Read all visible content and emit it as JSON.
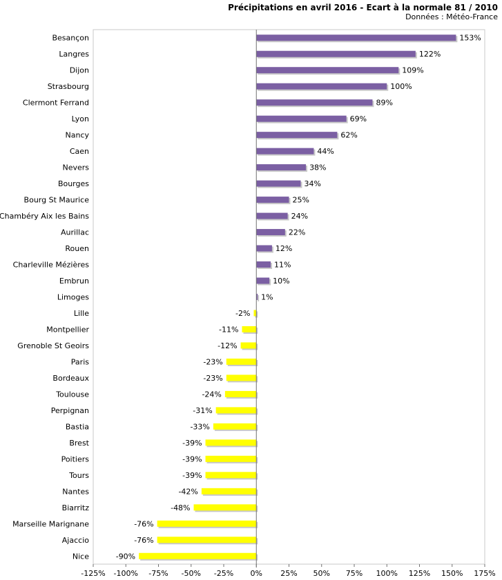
{
  "chart_data": {
    "type": "bar",
    "orientation": "horizontal",
    "title": "Précipitations en avril 2016 - Ecart à la normale 81 / 2010",
    "subtitle": "Données : Météo-France",
    "categories": [
      "Besançon",
      "Langres",
      "Dijon",
      "Strasbourg",
      "Clermont Ferrand",
      "Lyon",
      "Nancy",
      "Caen",
      "Nevers",
      "Bourges",
      "Bourg St Maurice",
      "Chambéry Aix les Bains",
      "Aurillac",
      "Rouen",
      "Charleville Mézières",
      "Embrun",
      "Limoges",
      "Lille",
      "Montpellier",
      "Grenoble St Geoirs",
      "Paris",
      "Bordeaux",
      "Toulouse",
      "Perpignan",
      "Bastia",
      "Brest",
      "Poitiers",
      "Tours",
      "Nantes",
      "Biarritz",
      "Marseille Marignane",
      "Ajaccio",
      "Nice"
    ],
    "values": [
      153,
      122,
      109,
      100,
      89,
      69,
      62,
      44,
      38,
      34,
      25,
      24,
      22,
      12,
      11,
      10,
      1,
      -2,
      -11,
      -12,
      -23,
      -23,
      -24,
      -31,
      -33,
      -39,
      -39,
      -39,
      -42,
      -48,
      -76,
      -76,
      -90
    ],
    "value_labels": [
      "153%",
      "122%",
      "109%",
      "100%",
      "89%",
      "69%",
      "62%",
      "44%",
      "38%",
      "34%",
      "25%",
      "24%",
      "22%",
      "12%",
      "11%",
      "10%",
      "1%",
      "-2%",
      "-11%",
      "-12%",
      "-23%",
      "-23%",
      "-24%",
      "-31%",
      "-33%",
      "-39%",
      "-39%",
      "-39%",
      "-42%",
      "-48%",
      "-76%",
      "-76%",
      "-90%"
    ],
    "xlim": [
      -125,
      175
    ],
    "xticks": [
      -125,
      -100,
      -75,
      -50,
      -25,
      0,
      25,
      50,
      75,
      100,
      125,
      150,
      175
    ],
    "xtick_labels": [
      "-125%",
      "-100%",
      "-75%",
      "-50%",
      "-25%",
      "0%",
      "25%",
      "50%",
      "75%",
      "100%",
      "125%",
      "150%",
      "175%"
    ],
    "colors": {
      "positive": "#7b5fa3",
      "negative": "#ffff00"
    },
    "grid": false,
    "legend": "none"
  }
}
